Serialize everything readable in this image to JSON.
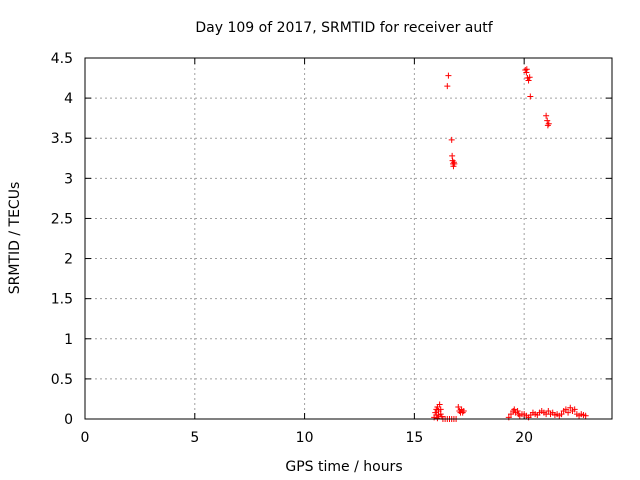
{
  "chart_data": {
    "type": "scatter",
    "title": "Day 109 of 2017, SRMTID for receiver autf",
    "xlabel": "GPS time / hours",
    "ylabel": "SRMTID / TECUs",
    "xlim": [
      0,
      24
    ],
    "ylim": [
      0,
      4.5
    ],
    "xticks": [
      0,
      5,
      10,
      15,
      20
    ],
    "yticks": [
      0,
      0.5,
      1,
      1.5,
      2,
      2.5,
      3,
      3.5,
      4,
      4.5
    ],
    "xtick_labels": [
      "0",
      "5",
      "10",
      "15",
      "20"
    ],
    "ytick_labels": [
      "0",
      "0.5",
      "1",
      "1.5",
      "2",
      "2.5",
      "3",
      "3.5",
      "4",
      "4.5"
    ],
    "grid": true,
    "marker": "+",
    "color": "#ff0000",
    "series": [
      {
        "name": "SRMTID",
        "points": [
          [
            15.9,
            0.02
          ],
          [
            15.95,
            0.08
          ],
          [
            16.0,
            0.12
          ],
          [
            16.05,
            0.15
          ],
          [
            16.1,
            0.1
          ],
          [
            16.15,
            0.18
          ],
          [
            16.2,
            0.06
          ],
          [
            16.25,
            0.03
          ],
          [
            16.0,
            0.05
          ],
          [
            16.1,
            0.05
          ],
          [
            16.2,
            0.12
          ],
          [
            16.05,
            0.01
          ],
          [
            16.3,
            0.0
          ],
          [
            16.4,
            0.0
          ],
          [
            16.5,
            0.0
          ],
          [
            16.6,
            0.0
          ],
          [
            16.7,
            0.0
          ],
          [
            16.8,
            0.0
          ],
          [
            16.9,
            0.0
          ],
          [
            16.5,
            4.15
          ],
          [
            16.55,
            4.28
          ],
          [
            16.7,
            3.48
          ],
          [
            16.72,
            3.28
          ],
          [
            16.74,
            3.22
          ],
          [
            16.76,
            3.18
          ],
          [
            16.78,
            3.15
          ],
          [
            16.8,
            3.2
          ],
          [
            16.82,
            3.18
          ],
          [
            17.0,
            0.15
          ],
          [
            17.05,
            0.1
          ],
          [
            17.1,
            0.08
          ],
          [
            17.15,
            0.12
          ],
          [
            17.2,
            0.08
          ],
          [
            17.25,
            0.1
          ],
          [
            19.3,
            0.02
          ],
          [
            19.4,
            0.06
          ],
          [
            19.5,
            0.1
          ],
          [
            19.55,
            0.12
          ],
          [
            19.6,
            0.08
          ],
          [
            19.7,
            0.1
          ],
          [
            19.75,
            0.06
          ],
          [
            19.8,
            0.04
          ],
          [
            19.9,
            0.06
          ],
          [
            20.0,
            0.06
          ],
          [
            20.1,
            0.04
          ],
          [
            20.2,
            0.02
          ],
          [
            20.3,
            0.05
          ],
          [
            20.4,
            0.08
          ],
          [
            20.5,
            0.06
          ],
          [
            20.6,
            0.05
          ],
          [
            20.7,
            0.08
          ],
          [
            20.8,
            0.1
          ],
          [
            20.9,
            0.08
          ],
          [
            21.0,
            0.06
          ],
          [
            21.1,
            0.1
          ],
          [
            21.2,
            0.06
          ],
          [
            21.3,
            0.08
          ],
          [
            21.4,
            0.05
          ],
          [
            21.5,
            0.06
          ],
          [
            21.6,
            0.04
          ],
          [
            21.7,
            0.06
          ],
          [
            21.8,
            0.1
          ],
          [
            21.9,
            0.12
          ],
          [
            22.0,
            0.08
          ],
          [
            22.1,
            0.14
          ],
          [
            22.2,
            0.1
          ],
          [
            22.3,
            0.12
          ],
          [
            22.4,
            0.06
          ],
          [
            22.5,
            0.04
          ],
          [
            22.6,
            0.06
          ],
          [
            22.7,
            0.05
          ],
          [
            22.8,
            0.04
          ],
          [
            20.05,
            4.35
          ],
          [
            20.1,
            4.32
          ],
          [
            20.12,
            4.36
          ],
          [
            20.15,
            4.25
          ],
          [
            20.2,
            4.22
          ],
          [
            20.25,
            4.26
          ],
          [
            20.28,
            4.02
          ],
          [
            21.0,
            3.78
          ],
          [
            21.05,
            3.72
          ],
          [
            21.08,
            3.66
          ],
          [
            21.12,
            3.68
          ]
        ]
      }
    ]
  }
}
